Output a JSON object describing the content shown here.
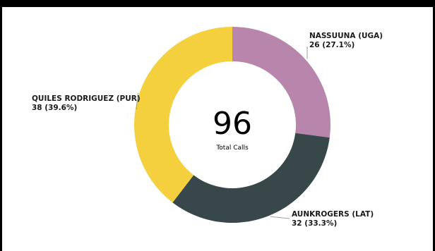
{
  "chart_data": {
    "type": "pie",
    "variant": "donut",
    "center_value": "96",
    "center_label": "Total Calls",
    "slices": [
      {
        "name": "NASSUUNA (UGA)",
        "value": 26,
        "percent": "27.1%",
        "color": "#b886ad"
      },
      {
        "name": "AUNKROGERS (LAT)",
        "value": 32,
        "percent": "33.3%",
        "color": "#37474a"
      },
      {
        "name": "QUILES RODRIGUEZ (PUR)",
        "value": 38,
        "percent": "39.6%",
        "color": "#f4d03f"
      }
    ]
  }
}
